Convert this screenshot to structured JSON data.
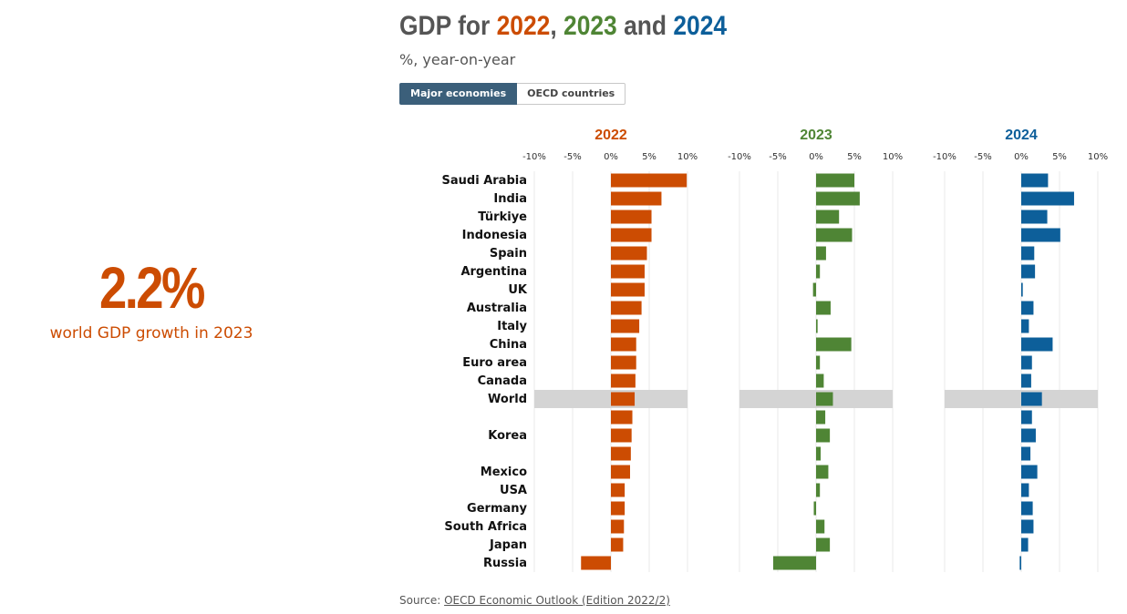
{
  "kpi": {
    "value": "2.2%",
    "label": "world GDP growth in 2023",
    "color": "#cc4c02"
  },
  "title": {
    "prefix": "GDP for ",
    "y1": "2022",
    "sep1": ", ",
    "y2": "2023",
    "sep2": " and ",
    "y3": "2024"
  },
  "subtitle": "%, year-on-year",
  "tabs": [
    {
      "label": "Major economies",
      "active": true
    },
    {
      "label": "OECD countries",
      "active": false
    }
  ],
  "source": {
    "prefix": "Source: ",
    "link": "OECD Economic Outlook (Edition 2022/2)"
  },
  "colors": {
    "2022": "#cc4c02",
    "2023": "#4f8535",
    "2024": "#0d5f9a",
    "highlight": "#d4d4d4",
    "grid": "#e8e8e8"
  },
  "chart_data": {
    "type": "bar",
    "orientation": "horizontal",
    "title": "GDP for 2022, 2023 and 2024",
    "subtitle": "%, year-on-year",
    "xlim": [
      -10,
      10
    ],
    "ticks": [
      "-10%",
      "-5%",
      "0%",
      "5%",
      "10%"
    ],
    "highlight": "World",
    "categories": [
      "Saudi Arabia",
      "India",
      "Türkiye",
      "Indonesia",
      "Spain",
      "Argentina",
      "UK",
      "Australia",
      "Italy",
      "China",
      "Euro area",
      "Canada",
      "World",
      "",
      "Korea",
      "",
      "Mexico",
      "USA",
      "Germany",
      "South Africa",
      "Japan",
      "Russia"
    ],
    "series": [
      {
        "name": "2022",
        "values": [
          9.9,
          6.6,
          5.3,
          5.3,
          4.7,
          4.4,
          4.4,
          4.0,
          3.7,
          3.3,
          3.3,
          3.2,
          3.1,
          2.8,
          2.7,
          2.6,
          2.5,
          1.8,
          1.8,
          1.7,
          1.6,
          -3.9
        ]
      },
      {
        "name": "2023",
        "values": [
          5.0,
          5.7,
          3.0,
          4.7,
          1.3,
          0.5,
          -0.4,
          1.9,
          0.2,
          4.6,
          0.5,
          1.0,
          2.2,
          1.2,
          1.8,
          0.6,
          1.6,
          0.5,
          -0.3,
          1.1,
          1.8,
          -5.6
        ]
      },
      {
        "name": "2024",
        "values": [
          3.5,
          6.9,
          3.4,
          5.1,
          1.7,
          1.8,
          0.2,
          1.6,
          1.0,
          4.1,
          1.4,
          1.3,
          2.7,
          1.4,
          1.9,
          1.2,
          2.1,
          1.0,
          1.5,
          1.6,
          0.9,
          -0.2
        ]
      }
    ]
  }
}
